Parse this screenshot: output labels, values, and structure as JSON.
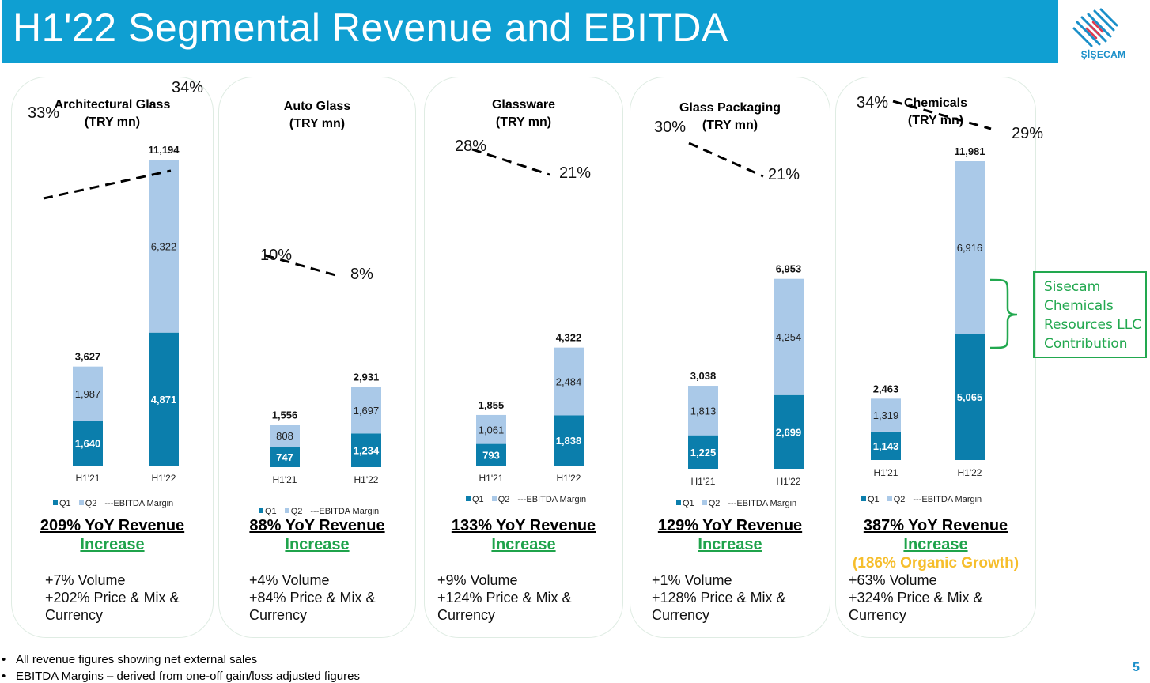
{
  "header": {
    "title": "H1'22 Segmental Revenue and EBITDA",
    "logo_text": "ŞİŞECAM",
    "logo_icon": "sisecam-logo-icon"
  },
  "colors": {
    "header_bg": "#0f9fd2",
    "q1": "#0b7eac",
    "q2": "#aac9e8",
    "increase_green": "#1fa34b",
    "organic_yellow": "#f6be2c",
    "callout_green": "#22a84f"
  },
  "legend": {
    "q1": "Q1",
    "q2": "Q2",
    "ebitda": "---EBITDA Margin"
  },
  "chart_data": [
    {
      "type": "bar",
      "stacked": true,
      "title": "Architectural Glass",
      "subtitle": "(TRY mn)",
      "categories": [
        "H1'21",
        "H1'22"
      ],
      "series": [
        {
          "name": "Q1",
          "values": [
            1640,
            4871
          ],
          "labels": [
            "1,640",
            "4,871"
          ]
        },
        {
          "name": "Q2",
          "values": [
            1987,
            6322
          ],
          "labels": [
            "1,987",
            "6,322"
          ]
        }
      ],
      "totals": [
        "3,627",
        "11,194"
      ],
      "ebitda_margin": {
        "name": "EBITDA Margin",
        "values": [
          33,
          34
        ],
        "labels": [
          "33%",
          "34%"
        ]
      },
      "yoy": "209% YoY Revenue",
      "increase": "Increase",
      "drivers": [
        "+7% Volume",
        "+202% Price & Mix &",
        "Currency"
      ]
    },
    {
      "type": "bar",
      "stacked": true,
      "title": "Auto Glass",
      "subtitle": "(TRY mn)",
      "categories": [
        "H1'21",
        "H1'22"
      ],
      "series": [
        {
          "name": "Q1",
          "values": [
            747,
            1234
          ],
          "labels": [
            "747",
            "1,234"
          ]
        },
        {
          "name": "Q2",
          "values": [
            808,
            1697
          ],
          "labels": [
            "808",
            "1,697"
          ]
        }
      ],
      "totals": [
        "1,556",
        "2,931"
      ],
      "ebitda_margin": {
        "name": "EBITDA Margin",
        "values": [
          10,
          8
        ],
        "labels": [
          "10%",
          "8%"
        ]
      },
      "yoy": "88% YoY Revenue",
      "increase": "Increase",
      "drivers": [
        "+4% Volume",
        "+84% Price & Mix &",
        "Currency"
      ]
    },
    {
      "type": "bar",
      "stacked": true,
      "title": "Glassware",
      "subtitle": "(TRY mn)",
      "categories": [
        "H1'21",
        "H1'22"
      ],
      "series": [
        {
          "name": "Q1",
          "values": [
            793,
            1838
          ],
          "labels": [
            "793",
            "1,838"
          ]
        },
        {
          "name": "Q2",
          "values": [
            1061,
            2484
          ],
          "labels": [
            "1,061",
            "2,484"
          ]
        }
      ],
      "totals": [
        "1,855",
        "4,322"
      ],
      "ebitda_margin": {
        "name": "EBITDA Margin",
        "values": [
          28,
          21
        ],
        "labels": [
          "28%",
          "21%"
        ]
      },
      "yoy": "133% YoY Revenue",
      "increase": "Increase",
      "drivers": [
        "+9% Volume",
        "+124% Price & Mix &",
        "Currency"
      ]
    },
    {
      "type": "bar",
      "stacked": true,
      "title": "Glass Packaging",
      "subtitle": "(TRY mn)",
      "categories": [
        "H1'21",
        "H1'22"
      ],
      "series": [
        {
          "name": "Q1",
          "values": [
            1225,
            2699
          ],
          "labels": [
            "1,225",
            "2,699"
          ]
        },
        {
          "name": "Q2",
          "values": [
            1813,
            4254
          ],
          "labels": [
            "1,813",
            "4,254"
          ]
        }
      ],
      "totals": [
        "3,038",
        "6,953"
      ],
      "ebitda_margin": {
        "name": "EBITDA Margin",
        "values": [
          30,
          21
        ],
        "labels": [
          "30%",
          "21%"
        ]
      },
      "yoy": "129% YoY Revenue",
      "increase": "Increase",
      "drivers": [
        "+1% Volume",
        "+128% Price & Mix &",
        "Currency"
      ]
    },
    {
      "type": "bar",
      "stacked": true,
      "title": "Chemicals",
      "subtitle": "(TRY mn)",
      "categories": [
        "H1'21",
        "H1'22"
      ],
      "series": [
        {
          "name": "Q1",
          "values": [
            1143,
            5065
          ],
          "labels": [
            "1,143",
            "5,065"
          ]
        },
        {
          "name": "Q2",
          "values": [
            1319,
            6916
          ],
          "labels": [
            "1,319",
            "6,916"
          ]
        }
      ],
      "totals": [
        "2,463",
        "11,981"
      ],
      "ebitda_margin": {
        "name": "EBITDA Margin",
        "values": [
          34,
          29
        ],
        "labels": [
          "34%",
          "29%"
        ]
      },
      "yoy": "387% YoY Revenue",
      "increase": "Increase",
      "organic": "(186% Organic Growth)",
      "drivers": [
        "+63% Volume",
        "+324% Price & Mix &",
        "Currency"
      ]
    }
  ],
  "callout": {
    "lines": [
      "Sisecam",
      "Chemicals",
      "Resources LLC",
      "Contribution"
    ]
  },
  "notes": [
    "All revenue figures showing net external sales",
    "EBITDA Margins – derived from one-off gain/loss adjusted figures"
  ],
  "page_number": "5"
}
